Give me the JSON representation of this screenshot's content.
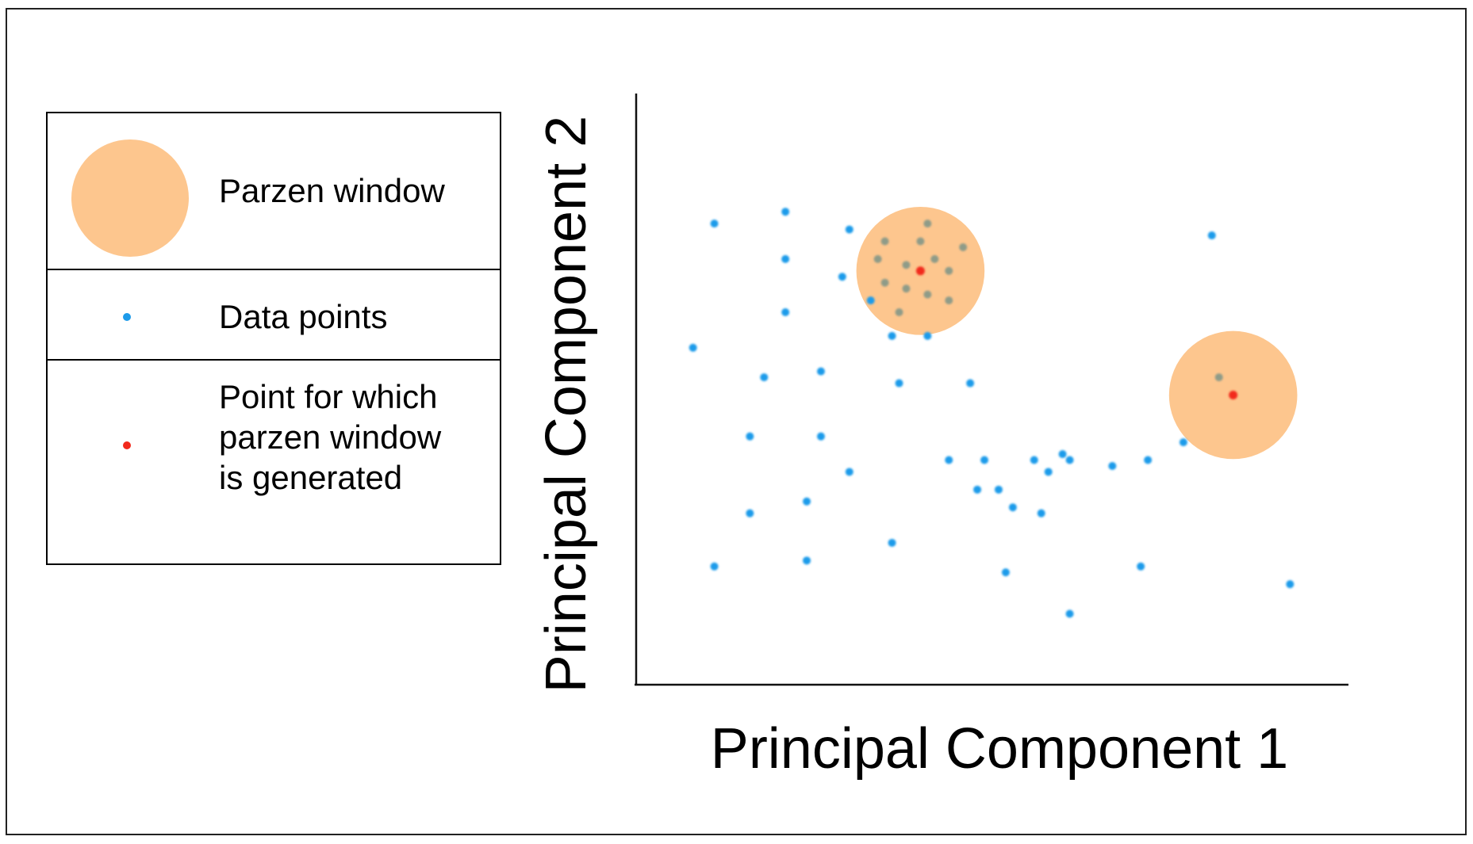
{
  "legend": {
    "parzen_label": "Parzen window",
    "data_label": "Data points",
    "point_label": "Point for which parzen window is generated"
  },
  "colors": {
    "window": "#fdc68e",
    "data_point": "#1d9bea",
    "query_point": "#f2291c",
    "inside_point": "#8f9b88"
  },
  "chart_data": {
    "type": "scatter",
    "xlabel": "Principal Component 1",
    "ylabel": "Principal Component 2",
    "xlim": [
      0,
      100
    ],
    "ylim": [
      0,
      100
    ],
    "grid": false,
    "legend_position": "left",
    "data_points": [
      [
        11,
        78
      ],
      [
        21,
        80
      ],
      [
        30,
        77
      ],
      [
        21,
        72
      ],
      [
        29,
        69
      ],
      [
        33,
        65
      ],
      [
        21,
        63
      ],
      [
        36,
        59
      ],
      [
        41,
        59
      ],
      [
        8,
        57
      ],
      [
        18,
        52
      ],
      [
        26,
        53
      ],
      [
        37,
        51
      ],
      [
        47,
        51
      ],
      [
        16,
        42
      ],
      [
        26,
        42
      ],
      [
        30,
        36
      ],
      [
        44,
        38
      ],
      [
        49,
        38
      ],
      [
        56,
        38
      ],
      [
        58,
        36
      ],
      [
        60,
        39
      ],
      [
        61,
        38
      ],
      [
        67,
        37
      ],
      [
        77,
        41
      ],
      [
        72,
        38
      ],
      [
        24,
        31
      ],
      [
        16,
        29
      ],
      [
        48,
        33
      ],
      [
        51,
        33
      ],
      [
        53,
        30
      ],
      [
        57,
        29
      ],
      [
        36,
        24
      ],
      [
        24,
        21
      ],
      [
        11,
        20
      ],
      [
        52,
        19
      ],
      [
        71,
        20
      ],
      [
        61,
        12
      ],
      [
        92,
        17
      ],
      [
        81,
        76
      ]
    ],
    "windows": [
      {
        "center": [
          40,
          70
        ],
        "radius": 11,
        "inside_points": [
          [
            41,
            78
          ],
          [
            35,
            75
          ],
          [
            40,
            75
          ],
          [
            46,
            74
          ],
          [
            34,
            72
          ],
          [
            38,
            71
          ],
          [
            42,
            72
          ],
          [
            44,
            70
          ],
          [
            35,
            68
          ],
          [
            38,
            67
          ],
          [
            41,
            66
          ],
          [
            44,
            65
          ],
          [
            37,
            63
          ]
        ]
      },
      {
        "center": [
          84,
          49
        ],
        "radius": 11,
        "inside_points": [
          [
            82,
            52
          ]
        ]
      }
    ]
  }
}
